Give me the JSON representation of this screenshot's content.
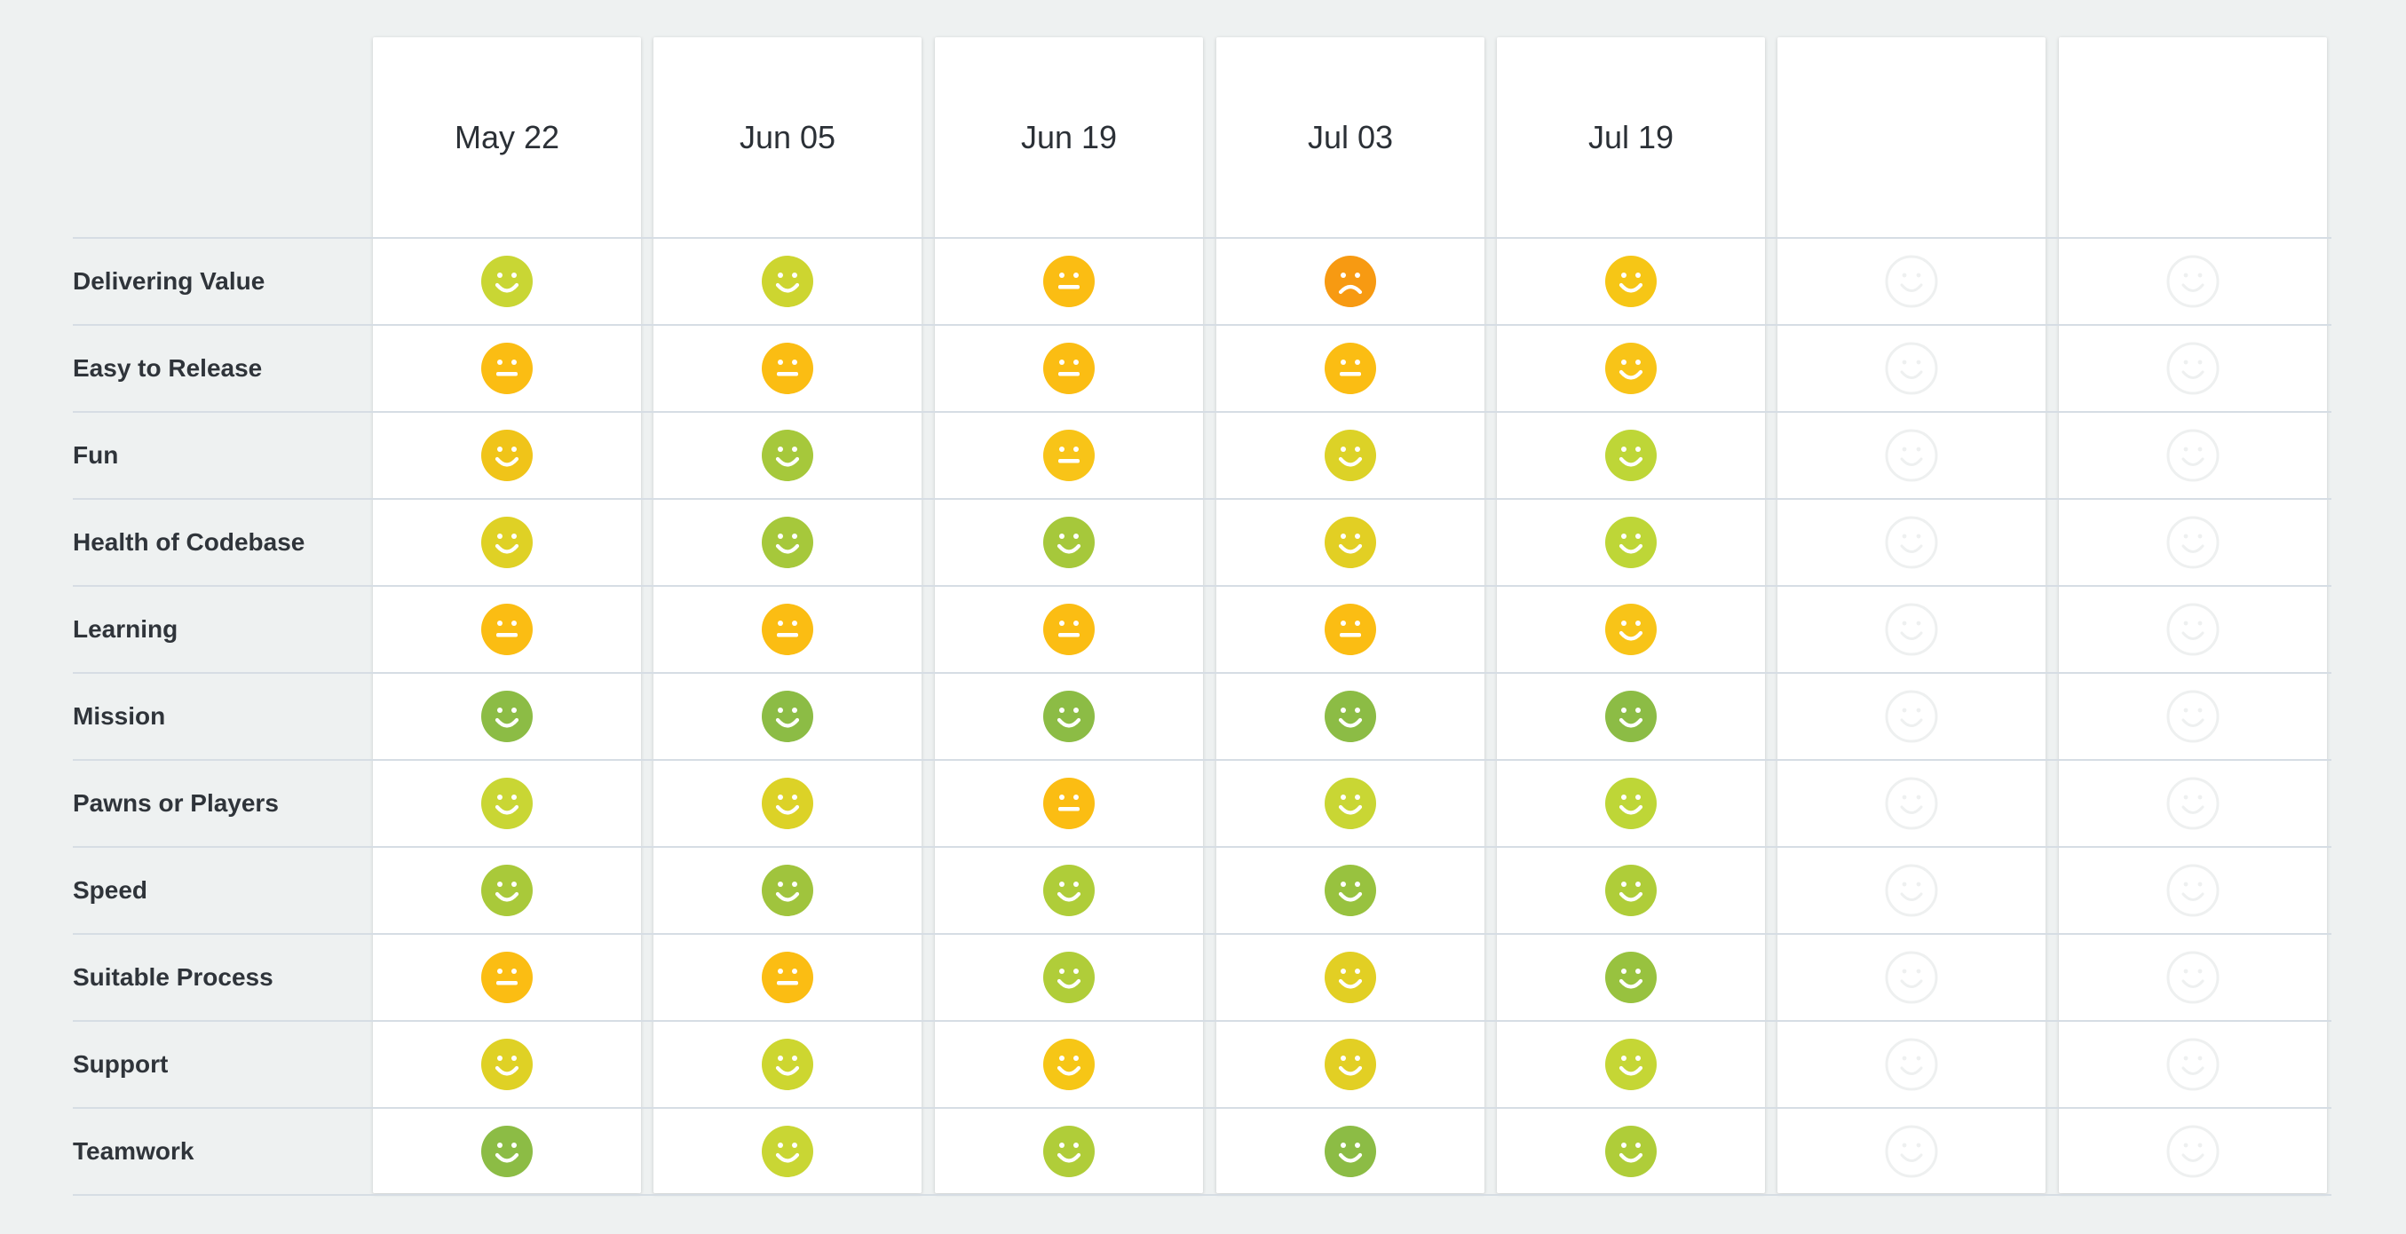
{
  "columns": [
    {
      "label": "May 22"
    },
    {
      "label": "Jun 05"
    },
    {
      "label": "Jun 19"
    },
    {
      "label": "Jul 03"
    },
    {
      "label": "Jul 19"
    },
    {
      "label": ""
    },
    {
      "label": ""
    }
  ],
  "rows": [
    {
      "label": "Delivering Value",
      "moods": [
        "happy",
        "happy",
        "neutral",
        "sad",
        "happy"
      ],
      "colors": [
        "#c9d634",
        "#cdd530",
        "#fbbd13",
        "#f79a12",
        "#f6c616"
      ]
    },
    {
      "label": "Easy to Release",
      "moods": [
        "neutral",
        "neutral",
        "neutral",
        "neutral",
        "happy"
      ],
      "colors": [
        "#fbbd13",
        "#fbbd13",
        "#fbbd13",
        "#fbbd13",
        "#f8c418"
      ]
    },
    {
      "label": "Fun",
      "moods": [
        "happy",
        "happy",
        "neutral",
        "happy",
        "happy"
      ],
      "colors": [
        "#f0c419",
        "#a6c83b",
        "#f8c418",
        "#dcd227",
        "#bed637"
      ]
    },
    {
      "label": "Health of Codebase",
      "moods": [
        "happy",
        "happy",
        "happy",
        "happy",
        "happy"
      ],
      "colors": [
        "#dfd125",
        "#a6c83b",
        "#a6c83b",
        "#e2cf24",
        "#bed637"
      ]
    },
    {
      "label": "Learning",
      "moods": [
        "neutral",
        "neutral",
        "neutral",
        "neutral",
        "happy"
      ],
      "colors": [
        "#fbbd13",
        "#fbbd13",
        "#fbbd13",
        "#fbbd13",
        "#f8c418"
      ]
    },
    {
      "label": "Mission",
      "moods": [
        "happy",
        "happy",
        "happy",
        "happy",
        "happy"
      ],
      "colors": [
        "#8cbc45",
        "#8cbc45",
        "#8cbc45",
        "#8cbc45",
        "#8cbc45"
      ]
    },
    {
      "label": "Pawns or Players",
      "moods": [
        "happy",
        "happy",
        "neutral",
        "happy",
        "happy"
      ],
      "colors": [
        "#c9d634",
        "#dcd227",
        "#fbbd13",
        "#c9d634",
        "#bed637"
      ]
    },
    {
      "label": "Speed",
      "moods": [
        "happy",
        "happy",
        "happy",
        "happy",
        "happy"
      ],
      "colors": [
        "#a9c93a",
        "#a0c43d",
        "#afcd39",
        "#98c23f",
        "#afcd39"
      ]
    },
    {
      "label": "Suitable Process",
      "moods": [
        "neutral",
        "neutral",
        "happy",
        "happy",
        "happy"
      ],
      "colors": [
        "#fbbd13",
        "#fbbd13",
        "#b0cd39",
        "#e2cf24",
        "#98c23f"
      ]
    },
    {
      "label": "Support",
      "moods": [
        "happy",
        "happy",
        "happy",
        "happy",
        "happy"
      ],
      "colors": [
        "#dfd125",
        "#cdd630",
        "#f6c616",
        "#e2cf24",
        "#c5d635"
      ]
    },
    {
      "label": "Teamwork",
      "moods": [
        "happy",
        "happy",
        "happy",
        "happy",
        "happy"
      ],
      "colors": [
        "#8cbc45",
        "#c9d634",
        "#b0cd39",
        "#8cbc45",
        "#afcd39"
      ]
    }
  ],
  "colors": {
    "background": "#eef1f1",
    "card": "#ffffff",
    "empty_face": "#eef0f0",
    "divider": "#d6dde4"
  },
  "icons": {
    "happy": "happy-face-icon",
    "neutral": "neutral-face-icon",
    "sad": "sad-face-icon",
    "empty": "empty-face-icon"
  }
}
